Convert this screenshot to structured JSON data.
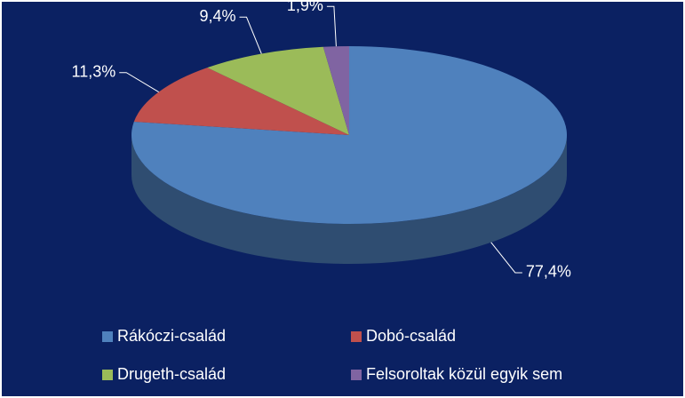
{
  "chart_data": {
    "type": "pie",
    "categories": [
      "Rákóczi-család",
      "Dobó-család",
      "Drugeth-család",
      "Felsoroltak közül egyik sem"
    ],
    "values": [
      77.4,
      11.3,
      9.4,
      1.9
    ],
    "value_labels": [
      "77,4%",
      "11,3%",
      "9,4%",
      "1,9%"
    ],
    "colors": [
      "#4f81bd",
      "#c0504d",
      "#9bbb59",
      "#8064a2"
    ],
    "legend": "bottom"
  }
}
